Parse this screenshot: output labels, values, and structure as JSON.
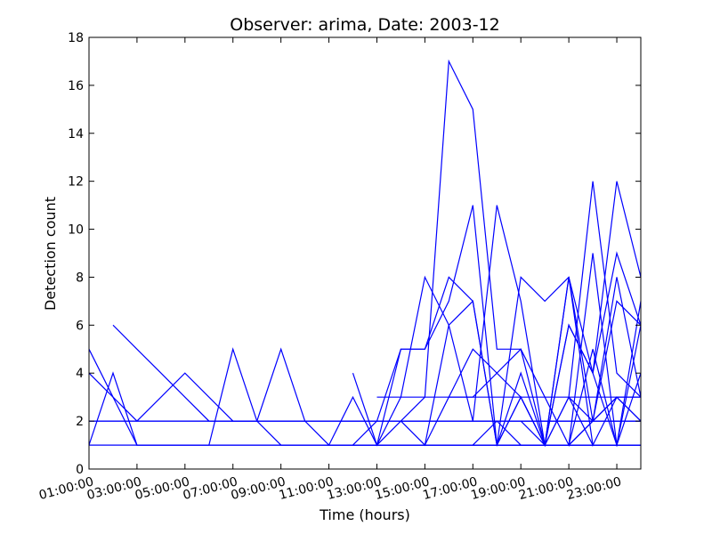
{
  "chart_data": {
    "type": "line",
    "title": "Observer: arima, Date: 2003-12",
    "xlabel": "Time (hours)",
    "ylabel": "Detection count",
    "xlim": [
      1,
      24
    ],
    "ylim": [
      0,
      18
    ],
    "x_ticks": [
      {
        "value": 1,
        "label": "01:00:00"
      },
      {
        "value": 3,
        "label": "03:00:00"
      },
      {
        "value": 5,
        "label": "05:00:00"
      },
      {
        "value": 7,
        "label": "07:00:00"
      },
      {
        "value": 9,
        "label": "09:00:00"
      },
      {
        "value": 11,
        "label": "11:00:00"
      },
      {
        "value": 13,
        "label": "13:00:00"
      },
      {
        "value": 15,
        "label": "15:00:00"
      },
      {
        "value": 17,
        "label": "17:00:00"
      },
      {
        "value": 19,
        "label": "19:00:00"
      },
      {
        "value": 21,
        "label": "21:00:00"
      },
      {
        "value": 23,
        "label": "23:00:00"
      }
    ],
    "y_ticks": [
      {
        "value": 0,
        "label": "0"
      },
      {
        "value": 2,
        "label": "2"
      },
      {
        "value": 4,
        "label": "4"
      },
      {
        "value": 6,
        "label": "6"
      },
      {
        "value": 8,
        "label": "8"
      },
      {
        "value": 10,
        "label": "10"
      },
      {
        "value": 12,
        "label": "12"
      },
      {
        "value": 14,
        "label": "14"
      },
      {
        "value": 16,
        "label": "16"
      },
      {
        "value": 18,
        "label": "18"
      }
    ],
    "grid": false,
    "line_color": "#0000ff",
    "series": [
      {
        "x": [
          1,
          2,
          3,
          4,
          5,
          6,
          7,
          8,
          9,
          10,
          11,
          12,
          13,
          14,
          15,
          16,
          17,
          18,
          19,
          20,
          21,
          22,
          23,
          24
        ],
        "y": [
          1,
          1,
          1,
          1,
          1,
          1,
          1,
          1,
          1,
          1,
          1,
          1,
          1,
          1,
          1,
          1,
          1,
          1,
          1,
          1,
          1,
          1,
          1,
          1
        ]
      },
      {
        "x": [
          1,
          2,
          3,
          4,
          5,
          6,
          7,
          8,
          9,
          10,
          11,
          12,
          13,
          14,
          15,
          16,
          17,
          18,
          19,
          20,
          21,
          22,
          23,
          24
        ],
        "y": [
          2,
          2,
          2,
          2,
          2,
          2,
          2,
          2,
          2,
          2,
          2,
          2,
          2,
          2,
          2,
          2,
          2,
          2,
          2,
          2,
          2,
          2,
          2,
          2
        ]
      },
      {
        "x": [
          13,
          14,
          15,
          16,
          17,
          18,
          19,
          20,
          21,
          22,
          23,
          24
        ],
        "y": [
          3,
          3,
          3,
          3,
          3,
          3,
          3,
          3,
          3,
          3,
          3,
          3
        ]
      },
      {
        "x": [
          1,
          2,
          3,
          4,
          5,
          6,
          7,
          8,
          9,
          10,
          11,
          12,
          13,
          14,
          15,
          16,
          17,
          18,
          19,
          20,
          21,
          22,
          23,
          24
        ],
        "y": [
          5,
          3,
          1,
          1,
          1,
          1,
          1,
          1,
          1,
          1,
          1,
          1,
          1,
          1,
          1,
          1,
          1,
          1,
          1,
          1,
          1,
          1,
          1,
          1
        ]
      },
      {
        "x": [
          2,
          3,
          4,
          5,
          6,
          7,
          8,
          9,
          10,
          11,
          12,
          13,
          14,
          15,
          16,
          17,
          18,
          19,
          20,
          21,
          22,
          23,
          24
        ],
        "y": [
          6,
          5,
          4,
          3,
          2,
          2,
          2,
          2,
          2,
          2,
          2,
          2,
          2,
          2,
          2,
          2,
          2,
          2,
          2,
          2,
          2,
          2,
          2
        ]
      },
      {
        "x": [
          1,
          2,
          3,
          4,
          5,
          6,
          7,
          8,
          9,
          10,
          11,
          12,
          13,
          14,
          15,
          16,
          17,
          18,
          19,
          20,
          21,
          22,
          23,
          24
        ],
        "y": [
          4,
          3,
          2,
          3,
          4,
          3,
          2,
          2,
          2,
          2,
          2,
          2,
          2,
          2,
          2,
          2,
          2,
          2,
          2,
          2,
          2,
          2,
          2,
          2
        ]
      },
      {
        "x": [
          1,
          2,
          3,
          4,
          5,
          6,
          7,
          8,
          9,
          10,
          11,
          12,
          13,
          14,
          15,
          16,
          17,
          18,
          19,
          20,
          21,
          22,
          23,
          24
        ],
        "y": [
          1,
          4,
          1,
          1,
          1,
          1,
          5,
          2,
          1,
          1,
          1,
          1,
          1,
          1,
          1,
          1,
          1,
          1,
          1,
          1,
          1,
          1,
          1,
          1
        ]
      },
      {
        "x": [
          1,
          2,
          3,
          4,
          5,
          6,
          7,
          8,
          9,
          10,
          11,
          12,
          13,
          14,
          15,
          16,
          17,
          18,
          19,
          20,
          21,
          22,
          23,
          24
        ],
        "y": [
          2,
          2,
          2,
          2,
          2,
          2,
          2,
          2,
          5,
          2,
          1,
          1,
          1,
          1,
          1,
          1,
          1,
          1,
          1,
          1,
          1,
          1,
          1,
          1
        ]
      },
      {
        "x": [
          11,
          12,
          13,
          14,
          15,
          16,
          17,
          18,
          19,
          20,
          21,
          22,
          23,
          24
        ],
        "y": [
          1,
          3,
          1,
          3,
          8,
          6,
          7,
          1,
          3,
          1,
          1,
          2,
          3,
          3
        ]
      },
      {
        "x": [
          12,
          13,
          14,
          15,
          16,
          17,
          18,
          19,
          20,
          21,
          22,
          23,
          24
        ],
        "y": [
          4,
          1,
          2,
          3,
          17,
          15,
          5,
          5,
          1,
          3,
          12,
          4,
          3
        ]
      },
      {
        "x": [
          12,
          13,
          14,
          15,
          16,
          17,
          18,
          19,
          20,
          21,
          22,
          23,
          24
        ],
        "y": [
          1,
          2,
          5,
          5,
          8,
          7,
          1,
          8,
          7,
          8,
          4,
          12,
          8
        ]
      },
      {
        "x": [
          13,
          14,
          15,
          16,
          17,
          18,
          19,
          20,
          21,
          22,
          23,
          24
        ],
        "y": [
          1,
          5,
          5,
          7,
          11,
          1,
          4,
          1,
          6,
          4,
          9,
          6
        ]
      },
      {
        "x": [
          14,
          15,
          16,
          17,
          18,
          19,
          20,
          21,
          22,
          23,
          24
        ],
        "y": [
          2,
          1,
          6,
          2,
          11,
          7,
          1,
          8,
          2,
          8,
          3
        ]
      },
      {
        "x": [
          15,
          16,
          17,
          18,
          19,
          20,
          21,
          22,
          23,
          24
        ],
        "y": [
          1,
          3,
          5,
          4,
          5,
          3,
          1,
          9,
          1,
          7
        ]
      },
      {
        "x": [
          16,
          17,
          18,
          19,
          20,
          21,
          22,
          23,
          24
        ],
        "y": [
          3,
          3,
          4,
          3,
          1,
          1,
          2,
          7,
          6
        ]
      },
      {
        "x": [
          17,
          18,
          19,
          20,
          21,
          22,
          23,
          24
        ],
        "y": [
          1,
          2,
          1,
          1,
          6,
          4,
          1,
          6
        ]
      },
      {
        "x": [
          18,
          19,
          20,
          21,
          22,
          23,
          24
        ],
        "y": [
          1,
          3,
          1,
          8,
          1,
          3,
          2
        ]
      },
      {
        "x": [
          19,
          20,
          21,
          22,
          23,
          24
        ],
        "y": [
          2,
          1,
          1,
          5,
          1,
          4
        ]
      },
      {
        "x": [
          20,
          21,
          22,
          23,
          24
        ],
        "y": [
          1,
          3,
          1,
          1,
          1
        ]
      },
      {
        "x": [
          21,
          22,
          23,
          24
        ],
        "y": [
          3,
          2,
          3,
          2
        ]
      }
    ]
  }
}
